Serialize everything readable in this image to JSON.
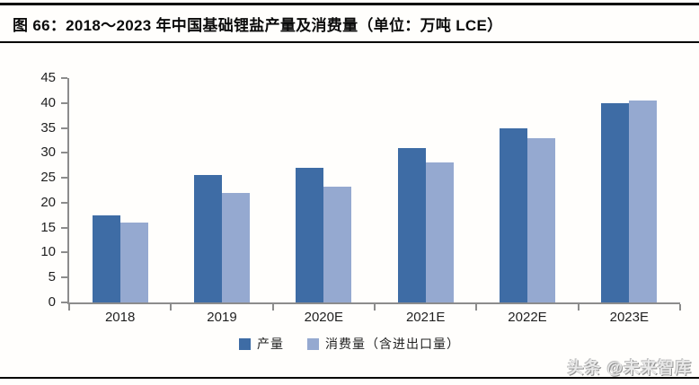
{
  "header": {
    "title": "图 66：2018～2023 年中国基础锂盐产量及消费量（单位：万吨 LCE）"
  },
  "watermark": {
    "text": "头条 @未来智库"
  },
  "chart_data": {
    "type": "bar",
    "title": "2018～2023 年中国基础锂盐产量及消费量",
    "unit": "万吨 LCE",
    "categories": [
      "2018",
      "2019",
      "2020E",
      "2021E",
      "2022E",
      "2023E"
    ],
    "series": [
      {
        "name": "产量",
        "color": "#3E6CA5",
        "values": [
          17.5,
          25.5,
          27,
          31,
          35,
          40
        ]
      },
      {
        "name": "消费量（含进出口量）",
        "color": "#95A9D0",
        "values": [
          16,
          22,
          23.3,
          28,
          33,
          40.5
        ]
      }
    ],
    "ylim": [
      0,
      45
    ],
    "ytick_step": 5,
    "grid": false,
    "legend_position": "bottom",
    "axis_color": "#8C8C8C",
    "xlabel": "",
    "ylabel": ""
  }
}
